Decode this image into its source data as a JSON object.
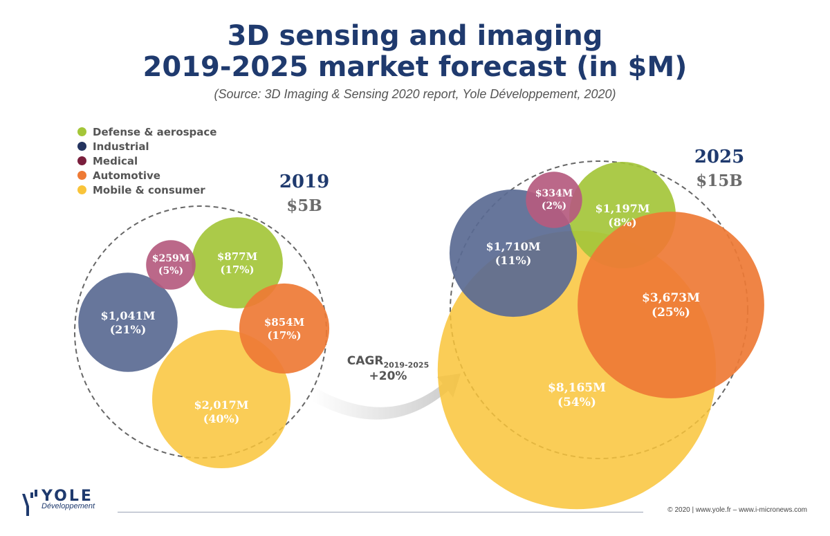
{
  "header": {
    "title_line1": "3D sensing and imaging",
    "title_line2": "2019-2025 market forecast (in $M)",
    "subtitle": "(Source: 3D Imaging & Sensing 2020 report, Yole Développement, 2020)"
  },
  "legend": [
    {
      "label": "Defense & aerospace",
      "color": "#a4c639"
    },
    {
      "label": "Industrial",
      "color": "#24345f"
    },
    {
      "label": "Medical",
      "color": "#7a1f3d"
    },
    {
      "label": "Automotive",
      "color": "#ee7a35"
    },
    {
      "label": "Mobile & consumer",
      "color": "#f9c43a"
    }
  ],
  "growth": {
    "cagr_label": "CAGR",
    "cagr_period": "2019-2025",
    "cagr_value": "+20%"
  },
  "chart_data": {
    "type": "bubble",
    "unit": "$M",
    "groups": [
      {
        "year": "2019",
        "total_label": "$5B",
        "segments": [
          {
            "name": "Defense & aerospace",
            "value": 877,
            "label": "$877M",
            "share": "(17%)",
            "color": "#a4c639"
          },
          {
            "name": "Industrial",
            "value": 1041,
            "label": "$1,041M",
            "share": "(21%)",
            "color": "#5a6a93"
          },
          {
            "name": "Medical",
            "value": 259,
            "label": "$259M",
            "share": "(5%)",
            "color": "#b55b7f"
          },
          {
            "name": "Automotive",
            "value": 854,
            "label": "$854M",
            "share": "(17%)",
            "color": "#ee7a35"
          },
          {
            "name": "Mobile & consumer",
            "value": 2017,
            "label": "$2,017M",
            "share": "(40%)",
            "color": "#f9c43a"
          }
        ]
      },
      {
        "year": "2025",
        "total_label": "$15B",
        "segments": [
          {
            "name": "Defense & aerospace",
            "value": 1197,
            "label": "$1,197M",
            "share": "(8%)",
            "color": "#a4c639"
          },
          {
            "name": "Industrial",
            "value": 1710,
            "label": "$1,710M",
            "share": "(11%)",
            "color": "#5a6a93"
          },
          {
            "name": "Medical",
            "value": 334,
            "label": "$334M",
            "share": "(2%)",
            "color": "#b55b7f"
          },
          {
            "name": "Automotive",
            "value": 3673,
            "label": "$3,673M",
            "share": "(25%)",
            "color": "#ee7a35"
          },
          {
            "name": "Mobile & consumer",
            "value": 8165,
            "label": "$8,165M",
            "share": "(54%)",
            "color": "#f9c43a"
          }
        ]
      }
    ]
  },
  "brand": {
    "name": "YOLE",
    "sub": "Développement"
  },
  "footer": {
    "copyright": "© 2020 | www.yole.fr – www.i-micronews.com"
  }
}
